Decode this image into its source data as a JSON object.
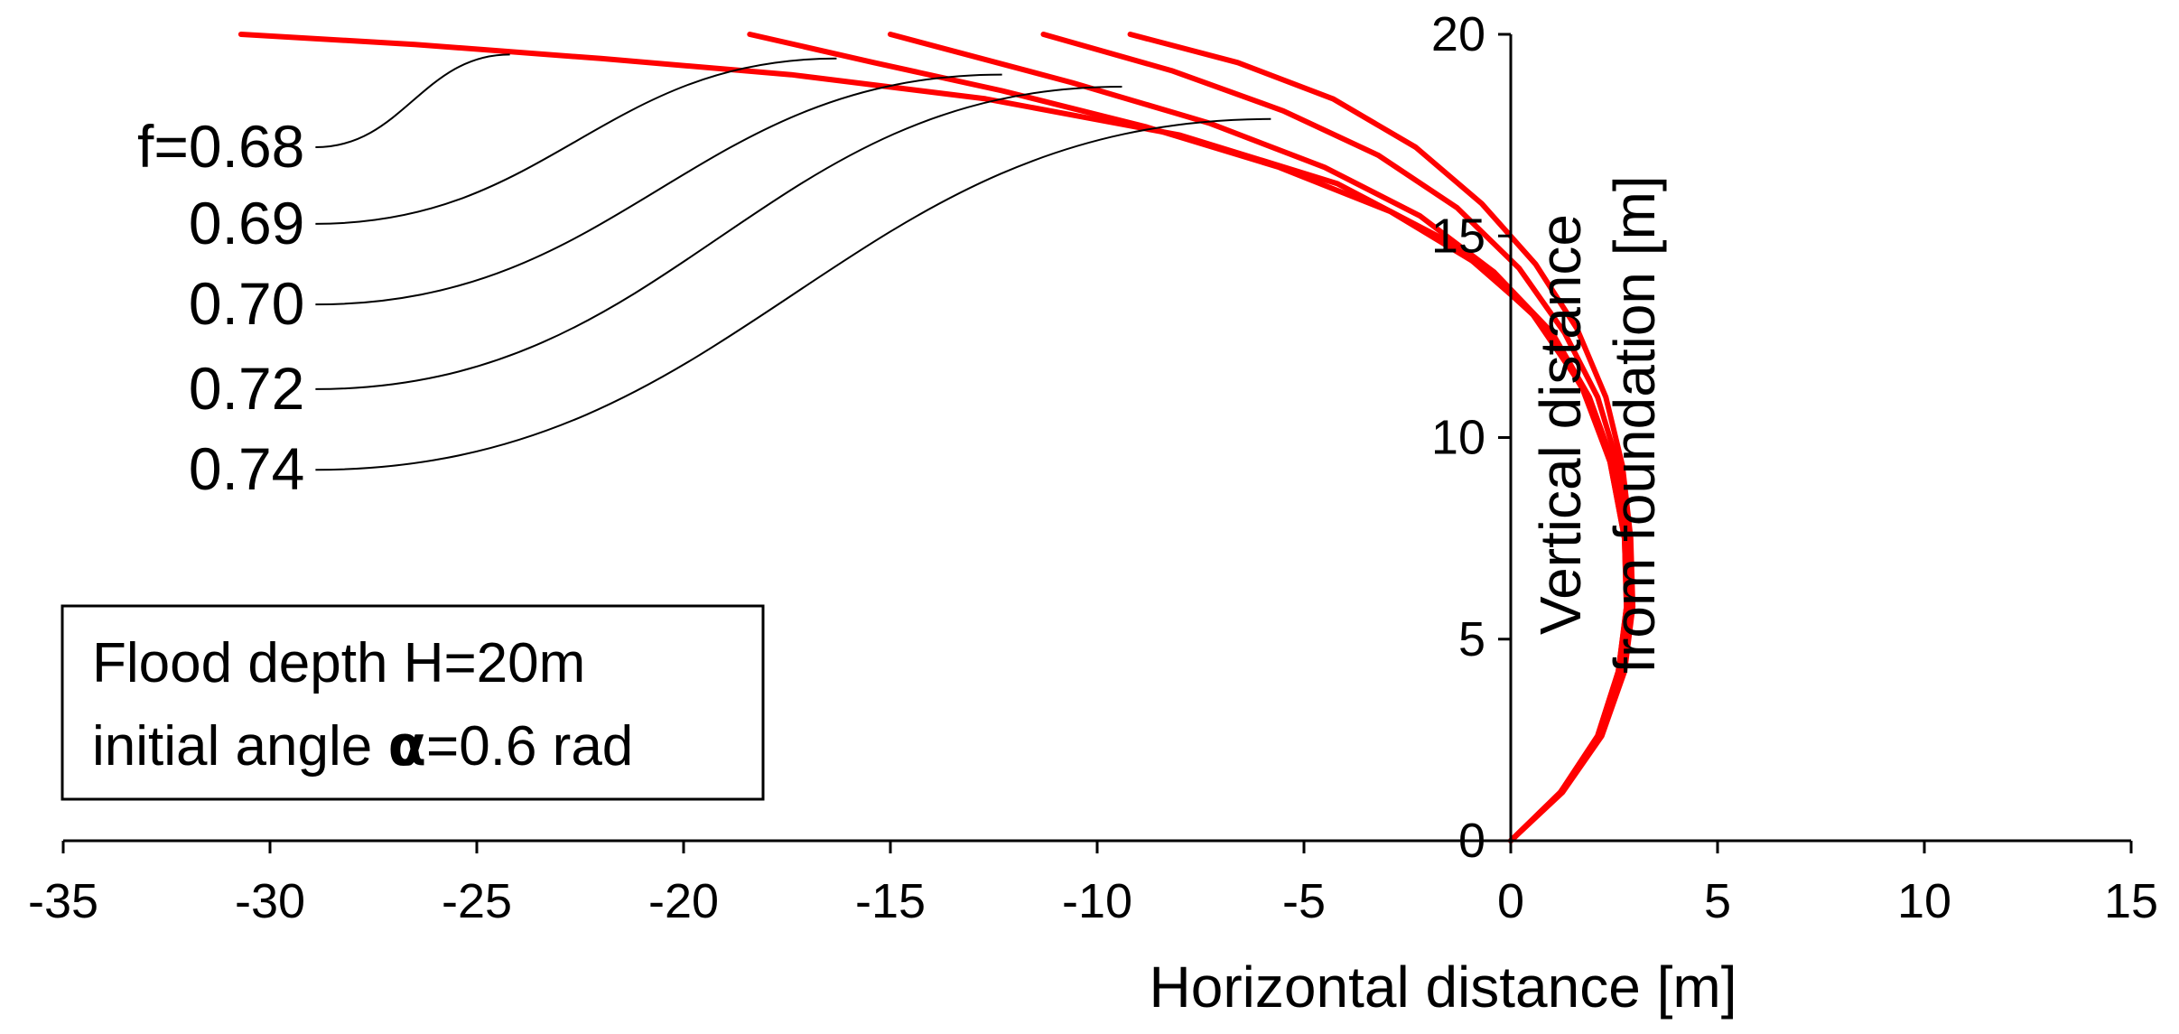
{
  "chart_data": {
    "type": "line",
    "title": "",
    "xlabel": "Horizontal distance [m]",
    "ylabel_lines": [
      "Vertical distance",
      "from foundation [m]"
    ],
    "xlim": [
      -35,
      15
    ],
    "ylim": [
      0,
      20
    ],
    "x_ticks": [
      -35,
      -30,
      -25,
      -20,
      -15,
      -10,
      -5,
      0,
      5,
      10,
      15
    ],
    "y_ticks": [
      0,
      5,
      10,
      15,
      20
    ],
    "x_tick_labels": [
      "-35",
      "-30",
      "-25",
      "-20",
      "-15",
      "-10",
      "-5",
      "0",
      "5",
      "10",
      "15"
    ],
    "y_tick_labels": [
      "0",
      "5",
      "10",
      "15",
      "20"
    ],
    "grid": false,
    "line_color": "#ff0000",
    "leader_color": "#000000",
    "series": [
      {
        "label": "f=0.68",
        "label_point": [
          -28.9,
          17.2
        ],
        "end_point": [
          -24.2,
          19.5
        ],
        "points": [
          [
            0,
            0
          ],
          [
            1.2,
            1.2
          ],
          [
            2.1,
            2.6
          ],
          [
            2.6,
            4.2
          ],
          [
            2.8,
            5.8
          ],
          [
            2.75,
            7.5
          ],
          [
            2.4,
            9.4
          ],
          [
            1.7,
            11.3
          ],
          [
            0.5,
            13.1
          ],
          [
            -1.4,
            14.8
          ],
          [
            -4.2,
            16.3
          ],
          [
            -8.0,
            17.5
          ],
          [
            -12.7,
            18.4
          ],
          [
            -17.4,
            19.0
          ],
          [
            -22.0,
            19.4
          ],
          [
            -26.5,
            19.75
          ],
          [
            -30.7,
            20.0
          ]
        ]
      },
      {
        "label": "0.69",
        "label_point": [
          -28.9,
          15.3
        ],
        "end_point": [
          -16.3,
          19.4
        ],
        "points": [
          [
            0,
            0
          ],
          [
            1.2,
            1.2
          ],
          [
            2.1,
            2.6
          ],
          [
            2.6,
            4.2
          ],
          [
            2.8,
            5.8
          ],
          [
            2.75,
            7.5
          ],
          [
            2.4,
            9.4
          ],
          [
            1.8,
            11.1
          ],
          [
            0.8,
            12.8
          ],
          [
            -0.8,
            14.3
          ],
          [
            -2.9,
            15.6
          ],
          [
            -5.6,
            16.7
          ],
          [
            -8.8,
            17.7
          ],
          [
            -12.3,
            18.6
          ],
          [
            -15.4,
            19.3
          ],
          [
            -18.4,
            20.0
          ]
        ]
      },
      {
        "label": "0.70",
        "label_point": [
          -28.9,
          13.3
        ],
        "end_point": [
          -12.3,
          19.0
        ],
        "points": [
          [
            0,
            0
          ],
          [
            1.2,
            1.2
          ],
          [
            2.15,
            2.6
          ],
          [
            2.65,
            4.2
          ],
          [
            2.85,
            5.8
          ],
          [
            2.8,
            7.5
          ],
          [
            2.5,
            9.3
          ],
          [
            1.9,
            11.0
          ],
          [
            1.0,
            12.6
          ],
          [
            -0.4,
            14.1
          ],
          [
            -2.2,
            15.5
          ],
          [
            -4.5,
            16.7
          ],
          [
            -7.3,
            17.8
          ],
          [
            -10.6,
            18.8
          ],
          [
            -15.0,
            20.0
          ]
        ]
      },
      {
        "label": "0.72",
        "label_point": [
          -28.9,
          11.2
        ],
        "end_point": [
          -9.4,
          18.7
        ],
        "points": [
          [
            0,
            0
          ],
          [
            1.2,
            1.2
          ],
          [
            2.15,
            2.6
          ],
          [
            2.7,
            4.2
          ],
          [
            2.9,
            5.8
          ],
          [
            2.85,
            7.5
          ],
          [
            2.6,
            9.3
          ],
          [
            2.1,
            11.0
          ],
          [
            1.3,
            12.6
          ],
          [
            0.2,
            14.2
          ],
          [
            -1.3,
            15.7
          ],
          [
            -3.2,
            17.0
          ],
          [
            -5.5,
            18.1
          ],
          [
            -8.2,
            19.1
          ],
          [
            -11.3,
            20.0
          ]
        ]
      },
      {
        "label": "0.74",
        "label_point": [
          -28.9,
          9.2
        ],
        "end_point": [
          -5.8,
          17.9
        ],
        "points": [
          [
            0,
            0
          ],
          [
            1.25,
            1.2
          ],
          [
            2.2,
            2.6
          ],
          [
            2.75,
            4.2
          ],
          [
            2.95,
            5.8
          ],
          [
            2.9,
            7.5
          ],
          [
            2.7,
            9.3
          ],
          [
            2.3,
            11.0
          ],
          [
            1.6,
            12.7
          ],
          [
            0.6,
            14.3
          ],
          [
            -0.7,
            15.8
          ],
          [
            -2.3,
            17.2
          ],
          [
            -4.3,
            18.4
          ],
          [
            -6.6,
            19.3
          ],
          [
            -9.2,
            20.0
          ]
        ]
      }
    ],
    "annotation_lines": [
      "Flood depth H=20m",
      "initial angle "
    ],
    "annotation_alpha": "α",
    "annotation_suffix": "=0.6 rad"
  }
}
